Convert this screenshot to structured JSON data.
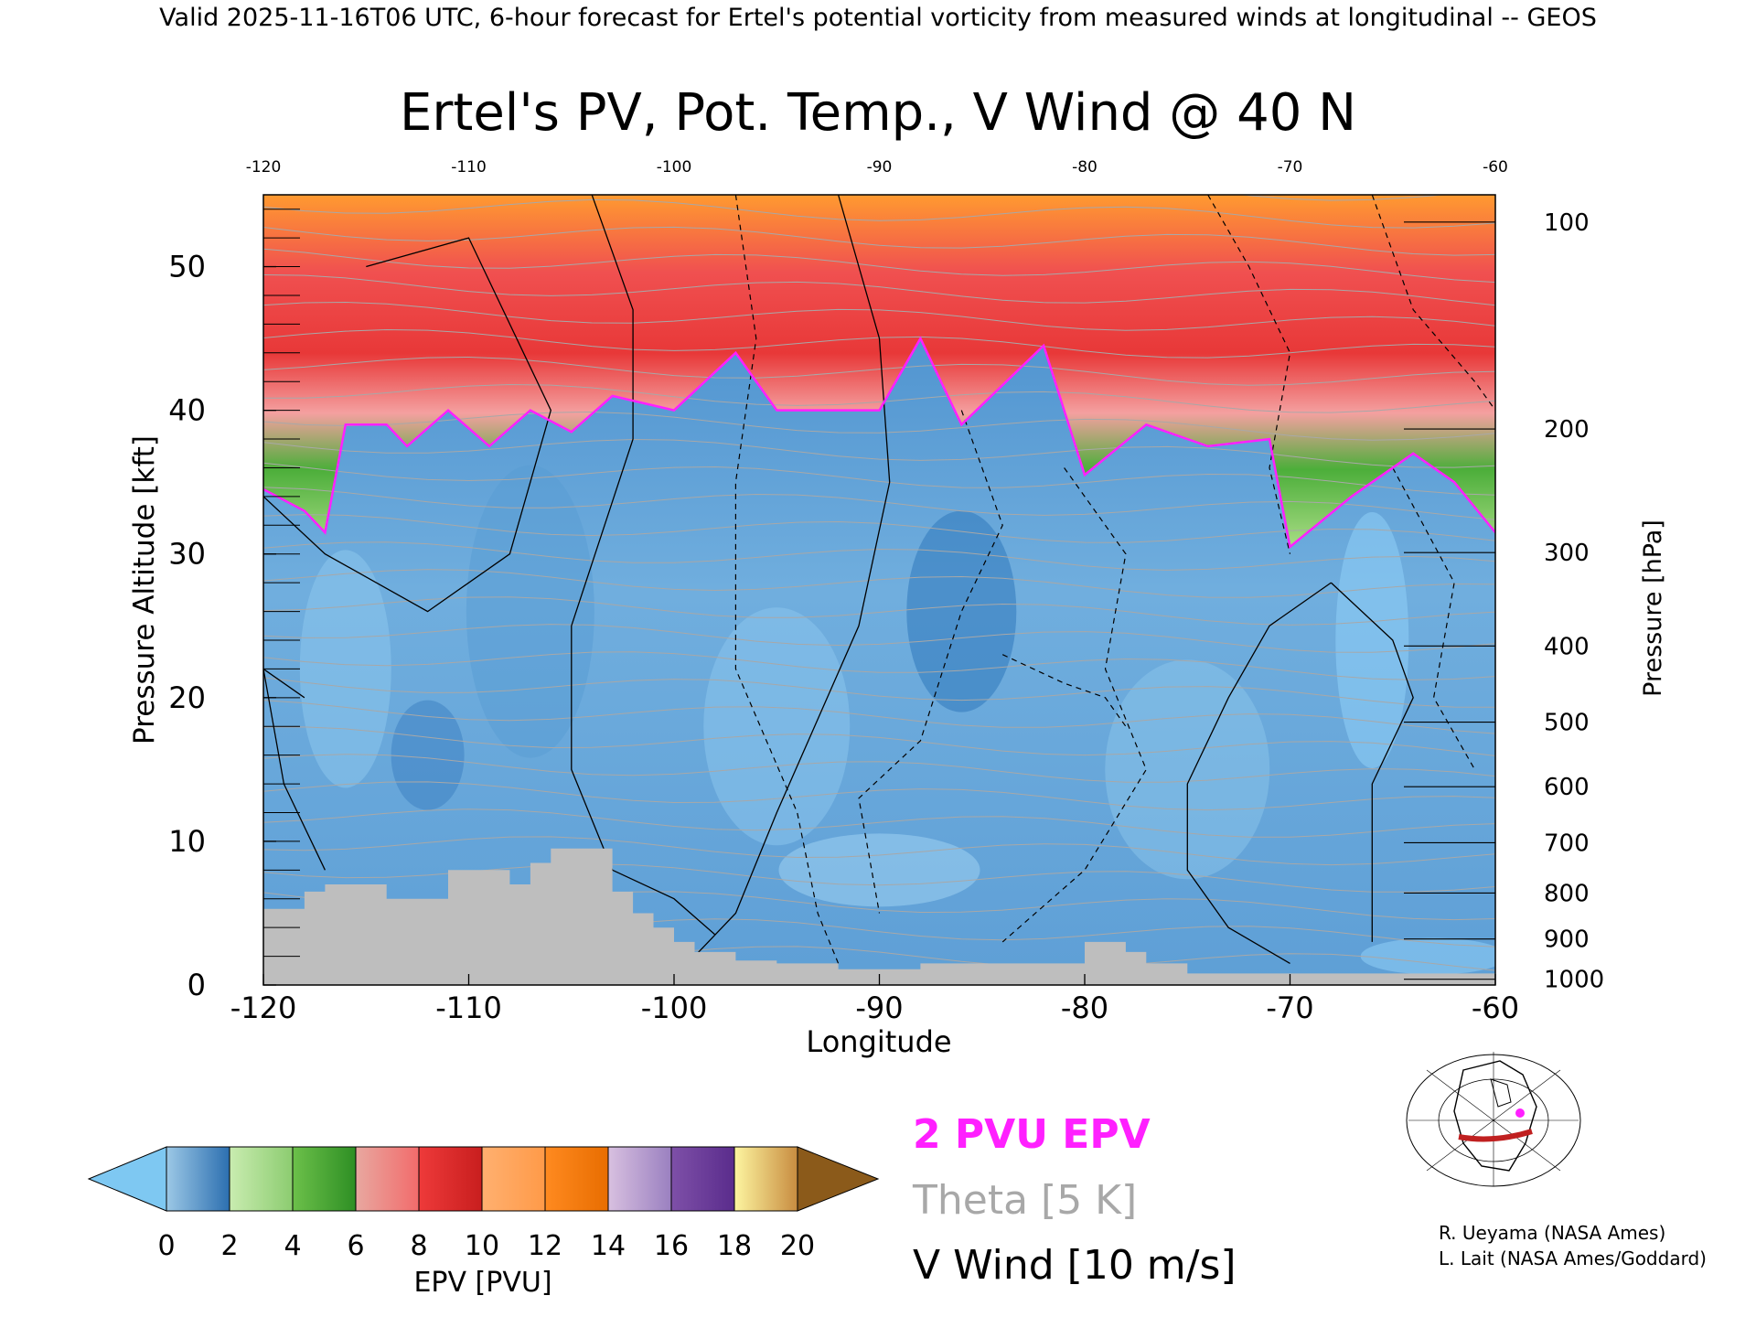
{
  "header": {
    "text": "Valid 2025-11-16T06 UTC, 6-hour forecast for Ertel's potential vorticity from measured winds at longitudinal -- GEOS"
  },
  "chart_data": {
    "type": "heatmap",
    "title": "Ertel's PV, Pot. Temp., V Wind @ 40 N",
    "xlabel": "Longitude",
    "ylabel": "Pressure Altitude [kft]",
    "y2label": "Pressure [hPa]",
    "xlim": [
      -120,
      -60
    ],
    "ylim": [
      0,
      55
    ],
    "x_ticks": [
      "-120",
      "-110",
      "-100",
      "-90",
      "-80",
      "-70",
      "-60"
    ],
    "x_ticks_top": [
      "-120",
      "-110",
      "-100",
      "-90",
      "-80",
      "-70",
      "-60"
    ],
    "y_ticks": [
      "0",
      "10",
      "20",
      "30",
      "40",
      "50"
    ],
    "pressure_ticks": [
      {
        "label": "100",
        "kft": 53.1
      },
      {
        "label": "200",
        "kft": 38.7
      },
      {
        "label": "300",
        "kft": 30.1
      },
      {
        "label": "400",
        "kft": 23.6
      },
      {
        "label": "500",
        "kft": 18.3
      },
      {
        "label": "600",
        "kft": 13.8
      },
      {
        "label": "700",
        "kft": 9.9
      },
      {
        "label": "800",
        "kft": 6.4
      },
      {
        "label": "900",
        "kft": 3.2
      },
      {
        "label": "1000",
        "kft": 0.4
      }
    ],
    "tropopause_2pvu_kft": [
      {
        "lon": -120,
        "kft": 34.5
      },
      {
        "lon": -118,
        "kft": 33
      },
      {
        "lon": -117,
        "kft": 31.5
      },
      {
        "lon": -116,
        "kft": 39
      },
      {
        "lon": -114,
        "kft": 39
      },
      {
        "lon": -113,
        "kft": 37.5
      },
      {
        "lon": -111,
        "kft": 40
      },
      {
        "lon": -109,
        "kft": 37.5
      },
      {
        "lon": -107,
        "kft": 40
      },
      {
        "lon": -105,
        "kft": 38.5
      },
      {
        "lon": -103,
        "kft": 41
      },
      {
        "lon": -100,
        "kft": 40
      },
      {
        "lon": -97,
        "kft": 44
      },
      {
        "lon": -95,
        "kft": 40
      },
      {
        "lon": -90,
        "kft": 40
      },
      {
        "lon": -88,
        "kft": 45
      },
      {
        "lon": -86,
        "kft": 39
      },
      {
        "lon": -82,
        "kft": 44.5
      },
      {
        "lon": -80,
        "kft": 35.5
      },
      {
        "lon": -77,
        "kft": 39
      },
      {
        "lon": -74,
        "kft": 37.5
      },
      {
        "lon": -71,
        "kft": 38
      },
      {
        "lon": -70,
        "kft": 30.5
      },
      {
        "lon": -67,
        "kft": 34
      },
      {
        "lon": -64,
        "kft": 37
      },
      {
        "lon": -62,
        "kft": 35
      },
      {
        "lon": -60,
        "kft": 31.5
      }
    ],
    "terrain_kft": [
      {
        "lon": -120,
        "kft": 5.3
      },
      {
        "lon": -118,
        "kft": 6.5
      },
      {
        "lon": -117,
        "kft": 7
      },
      {
        "lon": -115,
        "kft": 7
      },
      {
        "lon": -114,
        "kft": 6
      },
      {
        "lon": -112,
        "kft": 6
      },
      {
        "lon": -111,
        "kft": 8
      },
      {
        "lon": -109,
        "kft": 8
      },
      {
        "lon": -108,
        "kft": 7
      },
      {
        "lon": -107,
        "kft": 8.5
      },
      {
        "lon": -106,
        "kft": 9.5
      },
      {
        "lon": -104,
        "kft": 9.5
      },
      {
        "lon": -103,
        "kft": 6.5
      },
      {
        "lon": -102,
        "kft": 5
      },
      {
        "lon": -101,
        "kft": 4
      },
      {
        "lon": -100,
        "kft": 3
      },
      {
        "lon": -99,
        "kft": 2.3
      },
      {
        "lon": -97,
        "kft": 1.7
      },
      {
        "lon": -95,
        "kft": 1.5
      },
      {
        "lon": -92,
        "kft": 1.1
      },
      {
        "lon": -88,
        "kft": 1.5
      },
      {
        "lon": -85,
        "kft": 1.5
      },
      {
        "lon": -80,
        "kft": 3
      },
      {
        "lon": -78,
        "kft": 2.3
      },
      {
        "lon": -77,
        "kft": 1.5
      },
      {
        "lon": -75,
        "kft": 0.8
      },
      {
        "lon": -60,
        "kft": 0.8
      }
    ],
    "colorbar": {
      "label": "EPV [PVU]",
      "ticks": [
        "0",
        "2",
        "4",
        "6",
        "8",
        "10",
        "12",
        "14",
        "16",
        "18",
        "20"
      ],
      "under_color": "#7ec8f2",
      "over_color": "#8b5a1a",
      "segments": [
        {
          "range": [
            0,
            2
          ],
          "colors": [
            "#9cc8e6",
            "#2c6fb0"
          ]
        },
        {
          "range": [
            2,
            4
          ],
          "colors": [
            "#c9ecb0",
            "#8ccc70"
          ]
        },
        {
          "range": [
            4,
            6
          ],
          "colors": [
            "#6cc04a",
            "#2e8f24"
          ]
        },
        {
          "range": [
            6,
            8
          ],
          "colors": [
            "#e8a8a0",
            "#f26b6b"
          ]
        },
        {
          "range": [
            8,
            10
          ],
          "colors": [
            "#ee3a3a",
            "#c81e1e"
          ]
        },
        {
          "range": [
            10,
            12
          ],
          "colors": [
            "#ffb070",
            "#ff9a48"
          ]
        },
        {
          "range": [
            12,
            14
          ],
          "colors": [
            "#ff8a20",
            "#e86d00"
          ]
        },
        {
          "range": [
            14,
            16
          ],
          "colors": [
            "#d8c0e0",
            "#9a80c0"
          ]
        },
        {
          "range": [
            16,
            18
          ],
          "colors": [
            "#7e50a8",
            "#5a2c8c"
          ]
        },
        {
          "range": [
            18,
            20
          ],
          "colors": [
            "#fdf5a0",
            "#c88c40"
          ]
        }
      ]
    },
    "legend": [
      {
        "label": "2 PVU EPV",
        "color": "#ff20ff"
      },
      {
        "label": "Theta [5 K]",
        "color": "#a8a8a8"
      },
      {
        "label": "V Wind [10 m/s]",
        "color": "#000000"
      }
    ]
  },
  "credits": [
    "R. Ueyama (NASA Ames)",
    "L. Lait (NASA Ames/Goddard)"
  ],
  "colors": {
    "tropopause": "#ff20ff",
    "terrain": "#bebebe",
    "troposphere_base": "#6aa8d8"
  }
}
